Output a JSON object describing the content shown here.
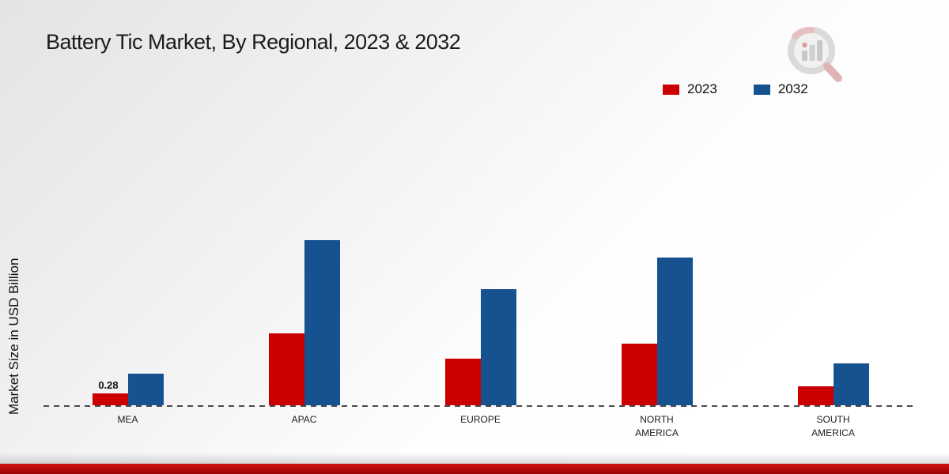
{
  "title": "Battery Tic Market, By Regional, 2023 & 2032",
  "y_axis_label": "Market Size in USD Billion",
  "legend": [
    {
      "label": "2023",
      "color": "#cc0001"
    },
    {
      "label": "2032",
      "color": "#175290"
    }
  ],
  "colors": {
    "series_2023": "#cc0001",
    "series_2032": "#175290",
    "bottom_strip": "#a30505",
    "baseline": "#4a4a4a"
  },
  "chart_data": {
    "type": "bar",
    "title": "Battery Tic Market, By Regional, 2023 & 2032",
    "xlabel": "",
    "ylabel": "Market Size in USD Billion",
    "categories": [
      "MEA",
      "APAC",
      "EUROPE",
      "NORTH AMERICA",
      "SOUTH AMERICA"
    ],
    "series": [
      {
        "name": "2023",
        "color": "#cc0001",
        "values": [
          0.28,
          1.7,
          1.1,
          1.45,
          0.45
        ],
        "labels": [
          "0.28",
          "",
          "",
          "",
          ""
        ]
      },
      {
        "name": "2032",
        "color": "#175290",
        "values": [
          0.75,
          3.9,
          2.75,
          3.5,
          1.0
        ]
      }
    ],
    "ylim": [
      0,
      4.5
    ],
    "grid": false,
    "axis_line": "dashed-baseline",
    "legend_position": "top-right",
    "annotations": [
      {
        "target": "MEA 2023 bar",
        "text": "0.28"
      }
    ]
  }
}
